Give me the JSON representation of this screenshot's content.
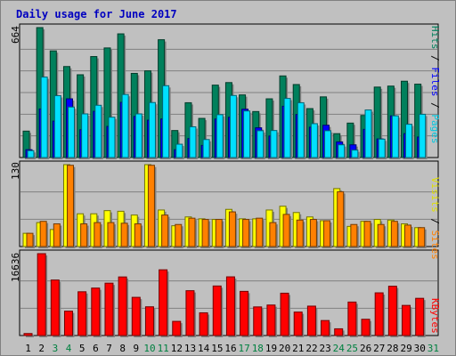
{
  "window": {
    "title": "Daily usage for June 2017"
  },
  "colors": {
    "hits": "#00805c",
    "files": "#0000ff",
    "pages": "#00e0ff",
    "visits": "#ffff00",
    "sites": "#ff8000",
    "kbytes": "#ff0000",
    "title": "#0000c0",
    "weekend": "#008040",
    "weekday": "#000000"
  },
  "panels": {
    "top": {
      "max_label": "664",
      "legend": [
        "Hits",
        "Files",
        "Pages"
      ]
    },
    "mid": {
      "max_label": "130",
      "legend": [
        "Visits",
        "Sites"
      ]
    },
    "bot": {
      "max_label": "16636",
      "legend": [
        "KBytes"
      ]
    }
  },
  "chart_data": {
    "type": "bar",
    "title": "Daily usage for June 2017",
    "categories": [
      "1",
      "2",
      "3",
      "4",
      "5",
      "6",
      "7",
      "8",
      "9",
      "10",
      "11",
      "12",
      "13",
      "14",
      "15",
      "16",
      "17",
      "18",
      "19",
      "20",
      "21",
      "22",
      "23",
      "24",
      "25",
      "26",
      "27",
      "28",
      "29",
      "30",
      "31"
    ],
    "weekend_days": [
      3,
      4,
      10,
      11,
      17,
      18,
      24,
      25,
      31
    ],
    "series": [
      {
        "name": "Hits",
        "panel": "top",
        "values": [
          135,
          664,
          545,
          465,
          423,
          516,
          560,
          632,
          430,
          443,
          602,
          138,
          280,
          200,
          370,
          383,
          320,
          235,
          300,
          417,
          373,
          250,
          310,
          122,
          176,
          215,
          360,
          365,
          390,
          375,
          0
        ]
      },
      {
        "name": "Files",
        "panel": "top",
        "values": [
          40,
          248,
          186,
          300,
          142,
          236,
          159,
          282,
          210,
          191,
          197,
          40,
          97,
          62,
          197,
          206,
          247,
          152,
          110,
          262,
          220,
          155,
          165,
          80,
          65,
          144,
          95,
          213,
          122,
          105,
          0
        ]
      },
      {
        "name": "Pages",
        "panel": "top",
        "values": [
          35,
          411,
          316,
          258,
          223,
          267,
          206,
          322,
          223,
          281,
          367,
          68,
          157,
          92,
          219,
          317,
          238,
          137,
          138,
          302,
          280,
          173,
          137,
          65,
          38,
          243,
          94,
          213,
          170,
          221,
          0
        ]
      },
      {
        "name": "Visits",
        "panel": "mid",
        "values": [
          21,
          38,
          27,
          130,
          52,
          52,
          57,
          56,
          50,
          130,
          58,
          33,
          47,
          44,
          43,
          59,
          44,
          44,
          58,
          64,
          54,
          47,
          41,
          92,
          32,
          40,
          43,
          42,
          36,
          30,
          0
        ]
      },
      {
        "name": "Sites",
        "panel": "mid",
        "values": [
          21,
          40,
          36,
          129,
          36,
          38,
          38,
          37,
          36,
          129,
          50,
          35,
          45,
          43,
          43,
          55,
          43,
          45,
          38,
          51,
          42,
          43,
          41,
          87,
          35,
          40,
          35,
          40,
          34,
          30,
          0
        ]
      },
      {
        "name": "KBytes",
        "panel": "bot",
        "values": [
          408,
          16636,
          11280,
          4953,
          8894,
          9644,
          10640,
          11904,
          7760,
          5841,
          13355,
          2878,
          9111,
          4616,
          10065,
          11924,
          8974,
          5818,
          6201,
          8601,
          4767,
          5976,
          3047,
          1367,
          6803,
          3306,
          8673,
          10018,
          6122,
          7562,
          0
        ]
      }
    ],
    "ylabels": {
      "top": "664",
      "mid": "130",
      "bot": "16636"
    }
  }
}
